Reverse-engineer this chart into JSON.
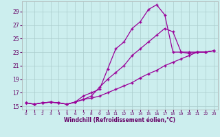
{
  "xlabel": "Windchill (Refroidissement éolien,°C)",
  "bg_color": "#cceeee",
  "grid_color": "#aacccc",
  "line_color": "#990099",
  "xlim": [
    -0.5,
    23.5
  ],
  "ylim": [
    14.5,
    30.5
  ],
  "xticks": [
    0,
    1,
    2,
    3,
    4,
    5,
    6,
    7,
    8,
    9,
    10,
    11,
    12,
    13,
    14,
    15,
    16,
    17,
    18,
    19,
    20,
    21,
    22,
    23
  ],
  "yticks": [
    15,
    17,
    19,
    21,
    23,
    25,
    27,
    29
  ],
  "line1_x": [
    0,
    1,
    2,
    3,
    4,
    5,
    6,
    7,
    8,
    9,
    10,
    11,
    12,
    13,
    14,
    15,
    16,
    17,
    18,
    19,
    20,
    21,
    22,
    23
  ],
  "line1_y": [
    15.5,
    15.3,
    15.5,
    15.6,
    15.5,
    15.3,
    15.6,
    16.5,
    17.0,
    17.5,
    20.5,
    23.5,
    24.5,
    26.5,
    27.5,
    29.3,
    30.0,
    28.5,
    23.0,
    23.0,
    23.0,
    23.0,
    23.0,
    23.2
  ],
  "line2_x": [
    0,
    1,
    2,
    3,
    4,
    5,
    6,
    7,
    8,
    9,
    10,
    11,
    12,
    13,
    14,
    15,
    16,
    17,
    18,
    19,
    20,
    21,
    22,
    23
  ],
  "line2_y": [
    15.5,
    15.3,
    15.5,
    15.6,
    15.5,
    15.3,
    15.6,
    16.0,
    16.5,
    17.8,
    19.0,
    20.0,
    21.0,
    22.5,
    23.5,
    24.5,
    25.5,
    26.5,
    26.0,
    23.0,
    22.8,
    23.0,
    23.0,
    23.2
  ],
  "line3_x": [
    0,
    1,
    2,
    3,
    4,
    5,
    6,
    7,
    8,
    9,
    10,
    11,
    12,
    13,
    14,
    15,
    16,
    17,
    18,
    19,
    20,
    21,
    22,
    23
  ],
  "line3_y": [
    15.5,
    15.3,
    15.5,
    15.6,
    15.5,
    15.3,
    15.6,
    16.0,
    16.2,
    16.5,
    17.0,
    17.5,
    18.0,
    18.5,
    19.2,
    19.8,
    20.3,
    21.0,
    21.5,
    22.0,
    22.5,
    23.0,
    23.0,
    23.2
  ]
}
